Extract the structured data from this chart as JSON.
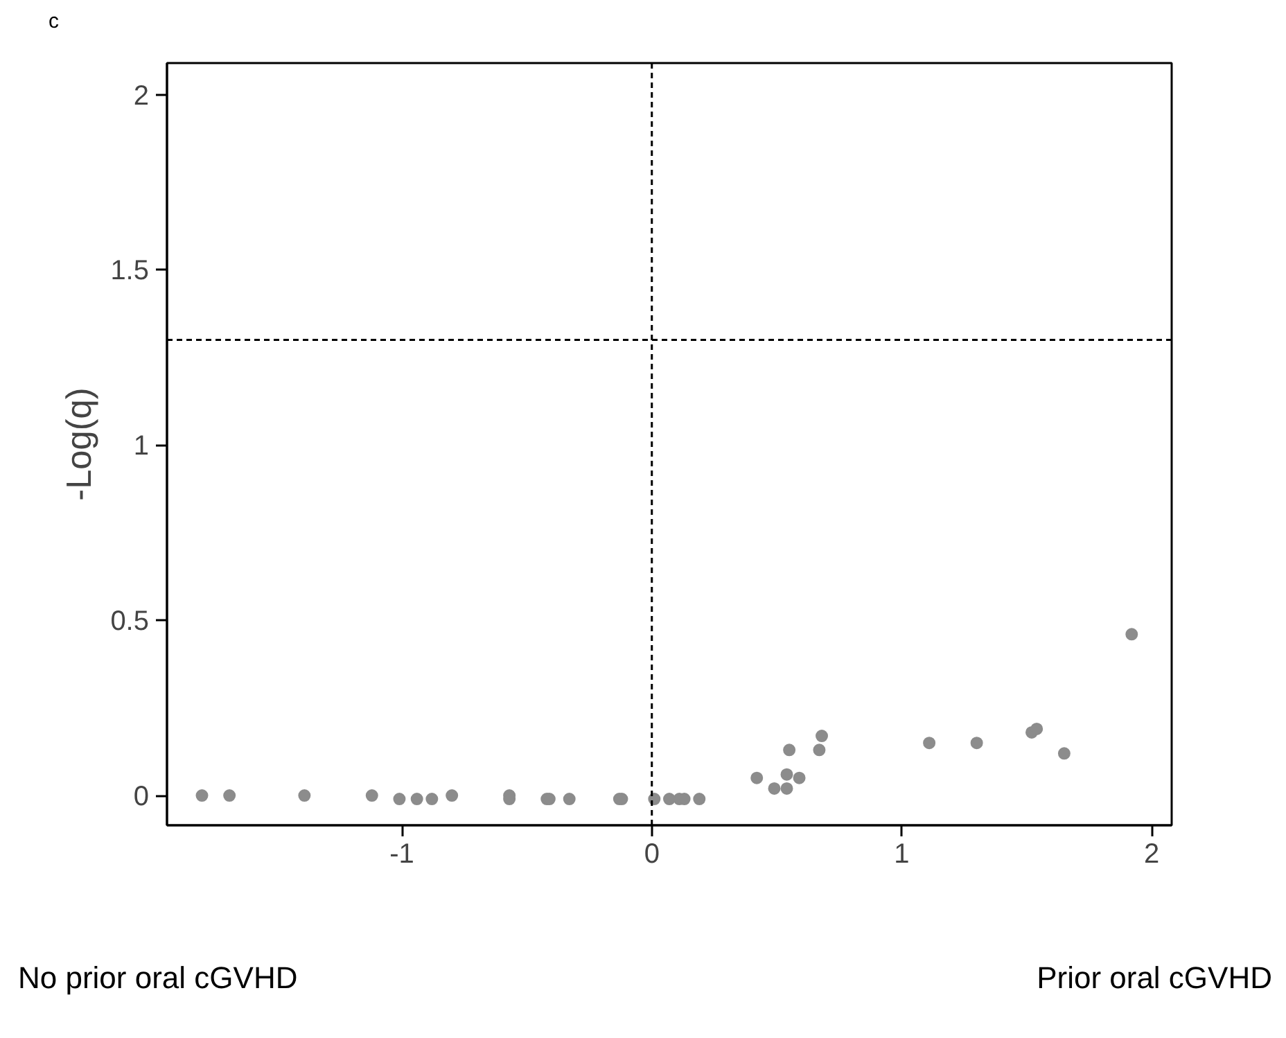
{
  "chart_data": {
    "type": "scatter",
    "ylabel": "-Log(q)",
    "annotations": [
      "c",
      "No prior oral cGVHD",
      "Prior oral cGVHD"
    ],
    "x": [
      -1.8,
      -1.69,
      -1.39,
      -1.12,
      -1.01,
      -0.94,
      -0.88,
      -0.8,
      -0.57,
      -0.57,
      -0.42,
      -0.41,
      -0.33,
      -0.13,
      -0.12,
      0.01,
      0.07,
      0.11,
      0.13,
      0.19,
      0.42,
      0.49,
      0.54,
      0.54,
      0.59,
      0.55,
      0.67,
      0.68,
      1.11,
      1.3,
      1.52,
      1.54,
      1.65,
      1.92
    ],
    "series": [
      {
        "color": "#8c8c8c",
        "values": [
          0.0,
          0.0,
          0.0,
          0.0,
          -0.01,
          -0.01,
          -0.01,
          0.0,
          0.0,
          -0.01,
          -0.01,
          -0.01,
          -0.01,
          -0.01,
          -0.01,
          -0.01,
          -0.01,
          -0.01,
          -0.01,
          -0.01,
          0.05,
          0.02,
          0.06,
          0.02,
          0.05,
          0.13,
          0.13,
          0.17,
          0.15,
          0.15,
          0.18,
          0.19,
          0.12,
          0.46
        ]
      }
    ],
    "xlim": [
      -1.94,
      2.08
    ],
    "ylim": [
      -0.085,
      2.09
    ],
    "xticks": [
      -1,
      0,
      1,
      2
    ],
    "yticks": [
      0,
      0.5,
      1,
      1.5,
      2
    ],
    "ref_lines": [
      {
        "axis": "y",
        "value": 1.3,
        "color": "#000000",
        "line_style": "dashed"
      },
      {
        "axis": "x",
        "value": 0,
        "color": "#000000",
        "line_style": "dashed"
      }
    ],
    "grid": false,
    "marker": "circle"
  }
}
